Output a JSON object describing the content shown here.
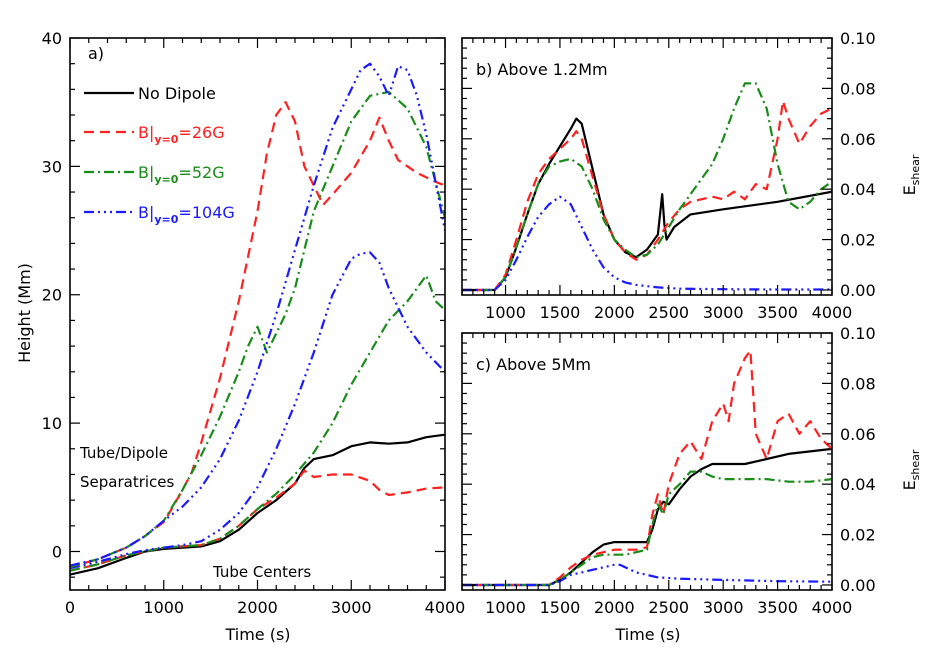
{
  "colors": {
    "no_dipole": "#000000",
    "b26": "#ff2020",
    "b52": "#1a8c1a",
    "b104": "#1a1aff"
  },
  "legend": [
    {
      "text": "No Dipole",
      "color": "#000000",
      "style": "solid"
    },
    {
      "text": "B|y=0=26G",
      "color": "#ff2020",
      "style": "dash"
    },
    {
      "text": "B|y=0=52G",
      "color": "#1a8c1a",
      "style": "dashdot"
    },
    {
      "text": "B|y=0=104G",
      "color": "#1a1aff",
      "style": "dashdotdotdot"
    }
  ],
  "legend_parts": {
    "b_prefix": "B|",
    "sub": "y=0",
    "suffixes": [
      "=26G",
      "=52G",
      "=104G"
    ]
  },
  "chart_data": [
    {
      "type": "line",
      "panel_label": "a)",
      "xlabel": "Time (s)",
      "ylabel": "Height (Mm)",
      "xlim": [
        0,
        4000
      ],
      "ylim": [
        -3,
        40
      ],
      "xticks": [
        0,
        1000,
        2000,
        3000,
        4000
      ],
      "yticks": [
        0,
        10,
        20,
        30,
        40
      ],
      "annotations": [
        {
          "text": "Tube/Dipole",
          "x": 80,
          "y": 9.3
        },
        {
          "text": "Separatrices",
          "x": 80,
          "y": 7.0
        },
        {
          "text": "Tube Centers",
          "x": 1500,
          "y": -1.8
        }
      ],
      "series": [
        {
          "name": "No Dipole (separatrix)",
          "color": "#000000",
          "style": "solid",
          "x": [
            0,
            300,
            600,
            800,
            1000,
            1200,
            1400,
            1600,
            1800,
            2000,
            2200,
            2400,
            2500,
            2600,
            2800,
            3000,
            3200,
            3400,
            3600,
            3800,
            4000
          ],
          "y": [
            -1.8,
            -1.3,
            -0.5,
            0.0,
            0.2,
            0.3,
            0.4,
            0.8,
            1.7,
            3.0,
            4.0,
            5.3,
            6.5,
            7.2,
            7.5,
            8.2,
            8.5,
            8.4,
            8.5,
            8.9,
            9.1
          ]
        },
        {
          "name": "26G (center)",
          "color": "#ff2020",
          "style": "dash",
          "x": [
            0,
            300,
            600,
            800,
            1000,
            1200,
            1400,
            1600,
            1800,
            2000,
            2200,
            2400,
            2500,
            2600,
            2800,
            3000,
            3200,
            3300,
            3400,
            3600,
            3800,
            4000
          ],
          "y": [
            -1.5,
            -1.0,
            -0.3,
            0.0,
            0.3,
            0.4,
            0.5,
            1.0,
            2.0,
            3.3,
            4.2,
            5.3,
            6.3,
            5.8,
            6.0,
            6.0,
            5.5,
            4.8,
            4.4,
            4.6,
            4.9,
            5.0
          ]
        },
        {
          "name": "52G (center)",
          "color": "#1a8c1a",
          "style": "dashdot",
          "x": [
            0,
            300,
            600,
            800,
            1000,
            1200,
            1400,
            1600,
            1800,
            2000,
            2200,
            2400,
            2600,
            2800,
            3000,
            3200,
            3400,
            3600,
            3700,
            3800,
            3900,
            4000
          ],
          "y": [
            -1.5,
            -1.0,
            -0.3,
            0.0,
            0.3,
            0.4,
            0.5,
            1.0,
            2.0,
            3.3,
            4.5,
            6.0,
            7.7,
            10.0,
            13.0,
            15.5,
            18.0,
            19.5,
            20.5,
            21.5,
            19.5,
            18.8
          ]
        },
        {
          "name": "104G (center)",
          "color": "#1a1aff",
          "style": "dashdotdotdot",
          "x": [
            0,
            300,
            600,
            800,
            1000,
            1200,
            1400,
            1600,
            1800,
            2000,
            2200,
            2400,
            2600,
            2800,
            3000,
            3100,
            3200,
            3300,
            3400,
            3600,
            3800,
            4000
          ],
          "y": [
            -1.3,
            -0.8,
            -0.2,
            0.1,
            0.3,
            0.5,
            0.8,
            1.7,
            3.0,
            5.0,
            8.0,
            11.5,
            15.5,
            20.0,
            22.8,
            23.2,
            23.3,
            22.5,
            20.5,
            17.5,
            15.5,
            14.0
          ]
        },
        {
          "name": "26G (separatrix)",
          "color": "#ff2020",
          "style": "dash",
          "x": [
            0,
            300,
            600,
            800,
            1000,
            1100,
            1200,
            1300,
            1400,
            1600,
            1800,
            2000,
            2100,
            2200,
            2300,
            2400,
            2500,
            2600,
            2700,
            2800,
            3000,
            3200,
            3300,
            3400,
            3500,
            3700,
            3900,
            4000
          ],
          "y": [
            -1.2,
            -0.6,
            0.3,
            1.2,
            2.3,
            3.5,
            4.8,
            6.2,
            8.5,
            13.5,
            19.5,
            26.5,
            31.0,
            34.0,
            35.0,
            33.5,
            30.0,
            28.5,
            27.0,
            27.8,
            29.5,
            32.0,
            33.8,
            32.0,
            30.5,
            29.5,
            28.8,
            28.5
          ]
        },
        {
          "name": "52G (separatrix)",
          "color": "#1a8c1a",
          "style": "dashdot",
          "x": [
            0,
            300,
            600,
            800,
            1000,
            1200,
            1400,
            1600,
            1800,
            1900,
            2000,
            2100,
            2200,
            2300,
            2400,
            2600,
            2800,
            3000,
            3200,
            3400,
            3600,
            3800,
            4000
          ],
          "y": [
            -1.2,
            -0.6,
            0.3,
            1.2,
            2.4,
            4.8,
            7.5,
            10.5,
            14.0,
            16.0,
            17.5,
            15.5,
            17.0,
            18.5,
            20.5,
            26.5,
            30.0,
            33.5,
            35.5,
            35.8,
            34.5,
            31.5,
            26.0
          ]
        },
        {
          "name": "104G (separatrix)",
          "color": "#1a1aff",
          "style": "dashdotdotdot",
          "x": [
            0,
            300,
            600,
            800,
            1000,
            1200,
            1400,
            1600,
            1800,
            2000,
            2200,
            2400,
            2600,
            2800,
            3000,
            3100,
            3200,
            3300,
            3400,
            3500,
            3600,
            3700,
            3800,
            4000
          ],
          "y": [
            -1.1,
            -0.6,
            0.3,
            1.2,
            2.4,
            3.5,
            5.0,
            7.2,
            10.2,
            14.0,
            18.5,
            23.5,
            28.5,
            33.0,
            36.0,
            37.5,
            38.0,
            37.0,
            35.5,
            37.8,
            37.5,
            35.5,
            32.5,
            25.0
          ]
        }
      ]
    },
    {
      "type": "line",
      "panel_label": "b) Above 1.2Mm",
      "xlabel": "",
      "ylabel": "E_shear",
      "ylabel_main": "E",
      "ylabel_sub": "shear",
      "xlim": [
        600,
        4000
      ],
      "ylim": [
        -0.002,
        0.1
      ],
      "xticks": [
        1000,
        1500,
        2000,
        2500,
        3000,
        3500,
        4000
      ],
      "yticks": [
        0.0,
        0.02,
        0.04,
        0.06,
        0.08,
        0.1
      ],
      "ytick_labels": [
        "0.00",
        "0.02",
        "0.04",
        "0.06",
        "0.08",
        "0.10"
      ],
      "series": [
        {
          "name": "No Dipole",
          "color": "#000000",
          "style": "solid",
          "x": [
            600,
            900,
            1000,
            1100,
            1200,
            1300,
            1400,
            1500,
            1600,
            1650,
            1700,
            1800,
            1900,
            2000,
            2100,
            2200,
            2300,
            2400,
            2440,
            2460,
            2480,
            2550,
            2700,
            3000,
            3500,
            4000
          ],
          "y": [
            0.0,
            0.0,
            0.005,
            0.017,
            0.03,
            0.042,
            0.05,
            0.057,
            0.064,
            0.068,
            0.066,
            0.048,
            0.03,
            0.02,
            0.015,
            0.013,
            0.016,
            0.022,
            0.038,
            0.026,
            0.02,
            0.025,
            0.03,
            0.032,
            0.035,
            0.039
          ]
        },
        {
          "name": "26G",
          "color": "#ff2020",
          "style": "dash",
          "x": [
            600,
            900,
            1000,
            1100,
            1200,
            1300,
            1400,
            1500,
            1600,
            1650,
            1700,
            1800,
            1900,
            2000,
            2100,
            2200,
            2300,
            2400,
            2500,
            2600,
            2700,
            2800,
            2900,
            3000,
            3100,
            3200,
            3300,
            3400,
            3500,
            3550,
            3600,
            3700,
            3800,
            3900,
            4000
          ],
          "y": [
            0.0,
            0.0,
            0.006,
            0.02,
            0.035,
            0.046,
            0.052,
            0.056,
            0.06,
            0.063,
            0.06,
            0.045,
            0.03,
            0.02,
            0.015,
            0.012,
            0.014,
            0.02,
            0.027,
            0.032,
            0.035,
            0.036,
            0.037,
            0.036,
            0.039,
            0.036,
            0.042,
            0.04,
            0.06,
            0.075,
            0.068,
            0.058,
            0.065,
            0.07,
            0.072
          ]
        },
        {
          "name": "52G",
          "color": "#1a8c1a",
          "style": "dashdot",
          "x": [
            600,
            900,
            1000,
            1100,
            1200,
            1300,
            1400,
            1500,
            1600,
            1700,
            1800,
            1900,
            2000,
            2100,
            2200,
            2300,
            2400,
            2500,
            2600,
            2700,
            2800,
            2900,
            3000,
            3100,
            3200,
            3300,
            3400,
            3500,
            3600,
            3700,
            3800,
            3900,
            4000
          ],
          "y": [
            0.0,
            0.0,
            0.005,
            0.017,
            0.03,
            0.042,
            0.049,
            0.051,
            0.052,
            0.049,
            0.04,
            0.028,
            0.02,
            0.016,
            0.013,
            0.014,
            0.018,
            0.025,
            0.032,
            0.038,
            0.044,
            0.05,
            0.06,
            0.072,
            0.082,
            0.082,
            0.072,
            0.05,
            0.035,
            0.032,
            0.035,
            0.04,
            0.043
          ]
        },
        {
          "name": "104G",
          "color": "#1a1aff",
          "style": "dashdotdotdot",
          "x": [
            600,
            900,
            1000,
            1100,
            1200,
            1300,
            1400,
            1500,
            1600,
            1700,
            1800,
            1900,
            2000,
            2100,
            2200,
            2400,
            2600,
            3000,
            3500,
            4000
          ],
          "y": [
            0.0,
            0.0,
            0.004,
            0.012,
            0.021,
            0.029,
            0.034,
            0.037,
            0.034,
            0.025,
            0.016,
            0.009,
            0.005,
            0.003,
            0.002,
            0.001,
            0.0005,
            0.0003,
            0.0002,
            0.0002
          ]
        }
      ]
    },
    {
      "type": "line",
      "panel_label": "c) Above 5Mm",
      "xlabel": "Time (s)",
      "ylabel": "E_shear",
      "ylabel_main": "E",
      "ylabel_sub": "shear",
      "xlim": [
        600,
        4000
      ],
      "ylim": [
        -0.002,
        0.1
      ],
      "xticks": [
        1000,
        1500,
        2000,
        2500,
        3000,
        3500,
        4000
      ],
      "yticks": [
        0.0,
        0.02,
        0.04,
        0.06,
        0.08,
        0.1
      ],
      "ytick_labels": [
        "0.00",
        "0.02",
        "0.04",
        "0.06",
        "0.08",
        "0.10"
      ],
      "series": [
        {
          "name": "No Dipole",
          "color": "#000000",
          "style": "solid",
          "x": [
            600,
            1400,
            1500,
            1600,
            1700,
            1800,
            1900,
            2000,
            2100,
            2200,
            2300,
            2350,
            2400,
            2450,
            2500,
            2600,
            2700,
            2800,
            2900,
            3000,
            3200,
            3400,
            3600,
            3800,
            4000
          ],
          "y": [
            0.0,
            0.0,
            0.002,
            0.005,
            0.009,
            0.013,
            0.016,
            0.017,
            0.017,
            0.017,
            0.017,
            0.022,
            0.03,
            0.033,
            0.032,
            0.038,
            0.043,
            0.046,
            0.048,
            0.048,
            0.048,
            0.05,
            0.052,
            0.053,
            0.054
          ]
        },
        {
          "name": "26G",
          "color": "#ff2020",
          "style": "dash",
          "x": [
            600,
            1400,
            1500,
            1600,
            1700,
            1800,
            1900,
            2000,
            2100,
            2200,
            2300,
            2350,
            2400,
            2450,
            2500,
            2600,
            2700,
            2800,
            2900,
            3000,
            3050,
            3100,
            3200,
            3250,
            3300,
            3400,
            3500,
            3600,
            3700,
            3800,
            3900,
            4000
          ],
          "y": [
            0.0,
            0.0,
            0.003,
            0.007,
            0.01,
            0.012,
            0.013,
            0.014,
            0.014,
            0.014,
            0.015,
            0.028,
            0.036,
            0.028,
            0.04,
            0.052,
            0.057,
            0.05,
            0.065,
            0.072,
            0.065,
            0.08,
            0.09,
            0.093,
            0.06,
            0.05,
            0.065,
            0.068,
            0.06,
            0.065,
            0.058,
            0.054
          ]
        },
        {
          "name": "52G",
          "color": "#1a8c1a",
          "style": "dashdot",
          "x": [
            600,
            1400,
            1500,
            1600,
            1700,
            1800,
            1900,
            2000,
            2100,
            2200,
            2300,
            2350,
            2400,
            2450,
            2500,
            2600,
            2700,
            2800,
            2900,
            3000,
            3200,
            3400,
            3600,
            3800,
            4000
          ],
          "y": [
            0.0,
            0.0,
            0.002,
            0.005,
            0.008,
            0.011,
            0.012,
            0.012,
            0.012,
            0.013,
            0.014,
            0.024,
            0.032,
            0.028,
            0.036,
            0.04,
            0.045,
            0.045,
            0.043,
            0.042,
            0.042,
            0.042,
            0.041,
            0.041,
            0.042
          ]
        },
        {
          "name": "104G",
          "color": "#1a1aff",
          "style": "dashdotdotdot",
          "x": [
            600,
            1400,
            1500,
            1600,
            1700,
            1800,
            1900,
            2000,
            2050,
            2100,
            2200,
            2300,
            2400,
            2600,
            3000,
            3500,
            4000
          ],
          "y": [
            0.0,
            0.0,
            0.0015,
            0.004,
            0.005,
            0.006,
            0.007,
            0.008,
            0.008,
            0.007,
            0.005,
            0.004,
            0.003,
            0.0025,
            0.002,
            0.0015,
            0.0013
          ]
        }
      ]
    }
  ]
}
